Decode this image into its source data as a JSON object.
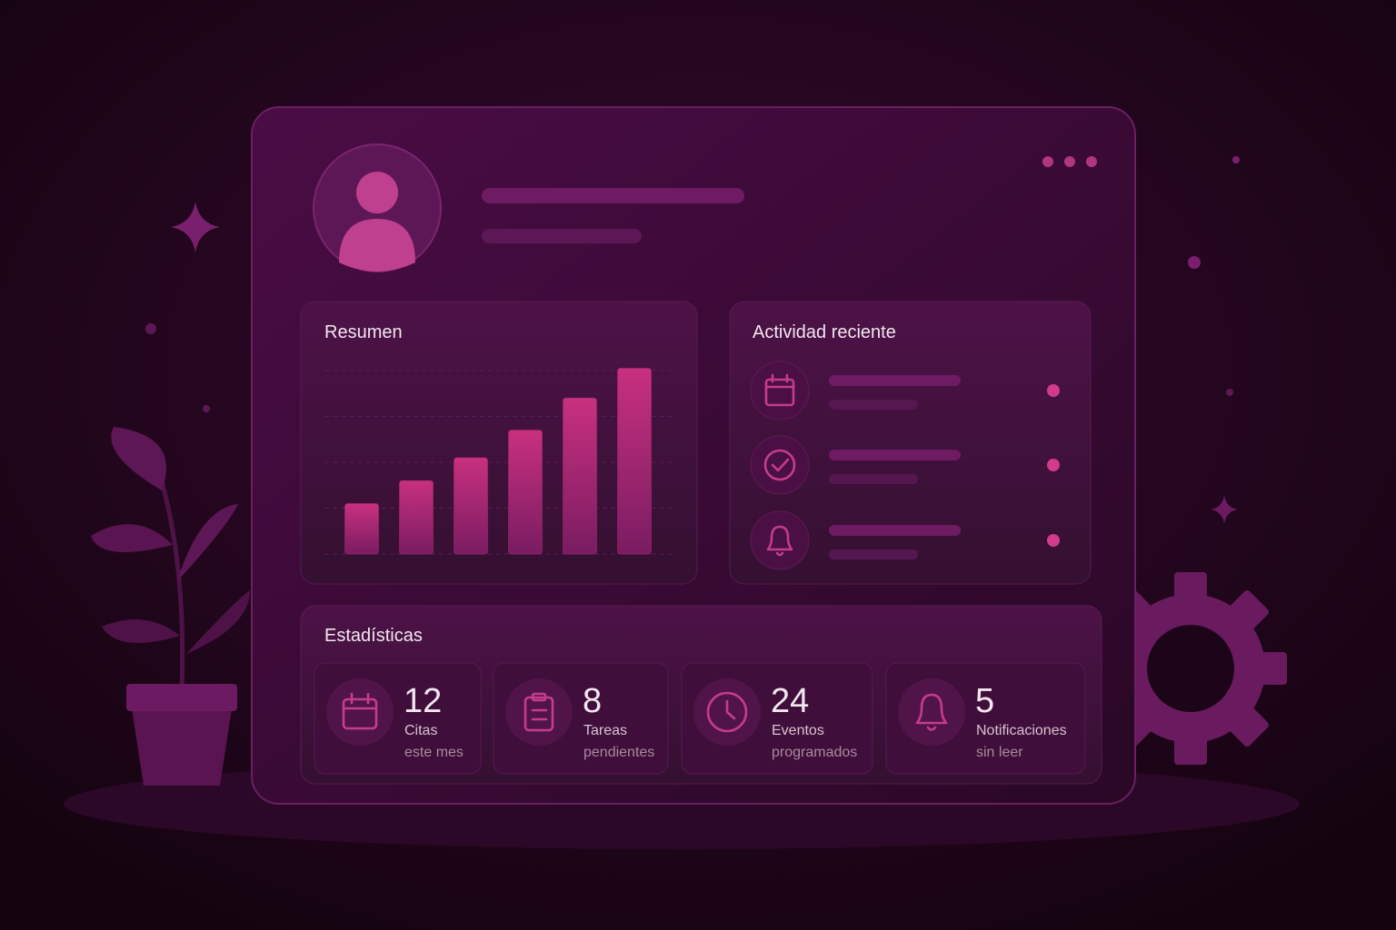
{
  "panels": {
    "summary": {
      "title": "Resumen"
    },
    "activity": {
      "title": "Actividad reciente"
    },
    "stats": {
      "title": "Estadísticas",
      "items": [
        {
          "value": 12,
          "label": "Citas",
          "sublabel": "este mes"
        },
        {
          "value": 8,
          "label": "Tareas",
          "sublabel": "pendientes"
        },
        {
          "value": 24,
          "label": "Eventos",
          "sublabel": "programados"
        },
        {
          "value": 5,
          "label": "Notificaciones",
          "sublabel": "sin leer"
        }
      ]
    }
  },
  "chart_data": {
    "type": "bar",
    "categories": [
      null,
      null,
      null,
      null,
      null,
      null
    ],
    "values": [
      1.1,
      1.6,
      2.1,
      2.7,
      3.4,
      4.05
    ],
    "color": "#c0307e",
    "ylim": [
      0,
      4
    ],
    "yticks": [
      0,
      1,
      2,
      3,
      4
    ],
    "grid": true
  }
}
